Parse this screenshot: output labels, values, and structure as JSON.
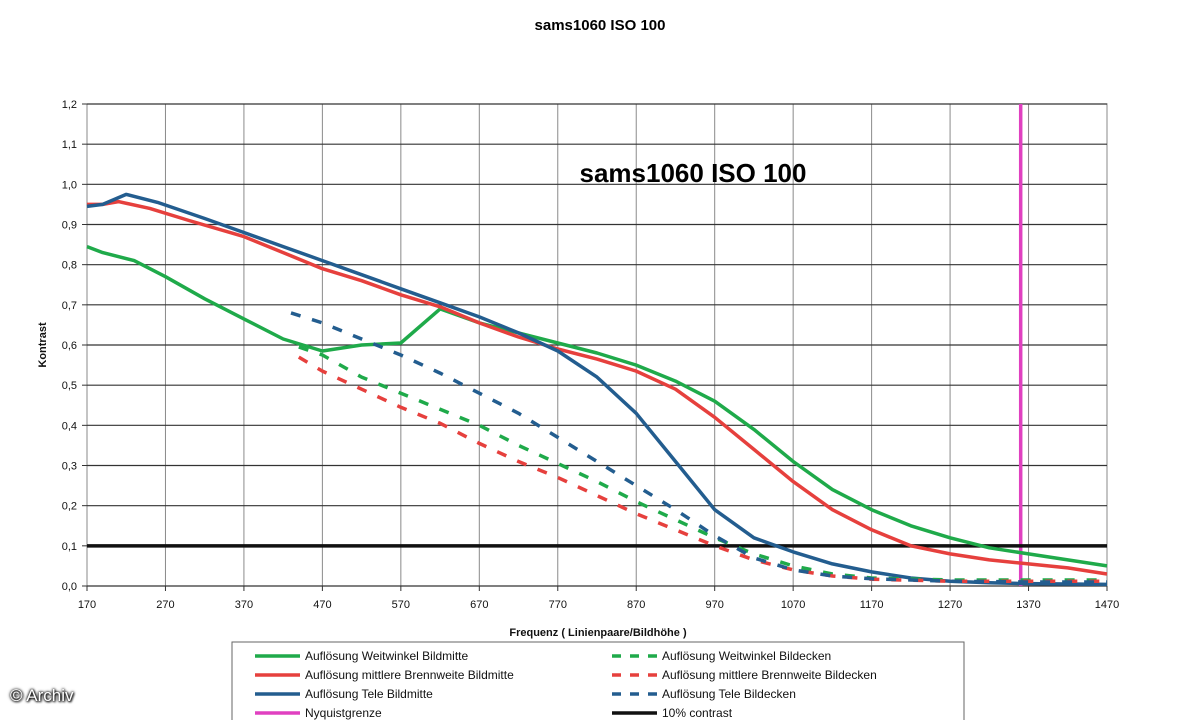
{
  "chart_data": {
    "type": "line",
    "title": "sams1060 ISO 100",
    "inner_title": "sams1060 ISO 100",
    "xlabel": "Frequenz ( Linienpaare/Bildhöhe )",
    "ylabel": "Kontrast",
    "xlim": [
      170,
      1470
    ],
    "ylim": [
      0,
      1.2
    ],
    "x_ticks": [
      "170",
      "270",
      "370",
      "470",
      "570",
      "670",
      "770",
      "870",
      "970",
      "1070",
      "1170",
      "1270",
      "1370",
      "1470"
    ],
    "y_ticks": [
      "0,0",
      "0,1",
      "0,2",
      "0,3",
      "0,4",
      "0,5",
      "0,6",
      "0,7",
      "0,8",
      "0,9",
      "1,0",
      "1,1",
      "1,2"
    ],
    "grid": "horizontal and vertical",
    "legend_position": "bottom",
    "series": [
      {
        "name": "Auflösung Weitwinkel Bildmitte",
        "color": "#1faa4a",
        "style": "solid",
        "points": [
          [
            170,
            0.845
          ],
          [
            190,
            0.83
          ],
          [
            230,
            0.81
          ],
          [
            270,
            0.77
          ],
          [
            320,
            0.715
          ],
          [
            370,
            0.665
          ],
          [
            420,
            0.615
          ],
          [
            470,
            0.585
          ],
          [
            520,
            0.6
          ],
          [
            570,
            0.605
          ],
          [
            620,
            0.69
          ],
          [
            670,
            0.655
          ],
          [
            720,
            0.63
          ],
          [
            770,
            0.605
          ],
          [
            820,
            0.58
          ],
          [
            870,
            0.55
          ],
          [
            920,
            0.51
          ],
          [
            970,
            0.46
          ],
          [
            1020,
            0.39
          ],
          [
            1070,
            0.31
          ],
          [
            1120,
            0.24
          ],
          [
            1170,
            0.19
          ],
          [
            1220,
            0.15
          ],
          [
            1270,
            0.12
          ],
          [
            1320,
            0.095
          ],
          [
            1370,
            0.08
          ],
          [
            1420,
            0.065
          ],
          [
            1470,
            0.05
          ]
        ]
      },
      {
        "name": "Auflösung mittlere Brennweite Bildmitte",
        "color": "#e6403d",
        "style": "solid",
        "points": [
          [
            170,
            0.95
          ],
          [
            190,
            0.95
          ],
          [
            210,
            0.957
          ],
          [
            250,
            0.94
          ],
          [
            300,
            0.91
          ],
          [
            370,
            0.87
          ],
          [
            420,
            0.83
          ],
          [
            470,
            0.79
          ],
          [
            520,
            0.76
          ],
          [
            570,
            0.725
          ],
          [
            620,
            0.695
          ],
          [
            670,
            0.655
          ],
          [
            720,
            0.62
          ],
          [
            770,
            0.59
          ],
          [
            820,
            0.565
          ],
          [
            870,
            0.535
          ],
          [
            920,
            0.49
          ],
          [
            970,
            0.42
          ],
          [
            1020,
            0.34
          ],
          [
            1070,
            0.26
          ],
          [
            1120,
            0.19
          ],
          [
            1170,
            0.14
          ],
          [
            1220,
            0.1
          ],
          [
            1270,
            0.08
          ],
          [
            1320,
            0.065
          ],
          [
            1370,
            0.055
          ],
          [
            1420,
            0.045
          ],
          [
            1470,
            0.03
          ]
        ]
      },
      {
        "name": "Auflösung Tele Bildmitte",
        "color": "#235d8f",
        "style": "solid",
        "points": [
          [
            170,
            0.945
          ],
          [
            190,
            0.95
          ],
          [
            220,
            0.975
          ],
          [
            260,
            0.955
          ],
          [
            320,
            0.915
          ],
          [
            370,
            0.88
          ],
          [
            420,
            0.845
          ],
          [
            470,
            0.81
          ],
          [
            520,
            0.775
          ],
          [
            570,
            0.74
          ],
          [
            620,
            0.705
          ],
          [
            670,
            0.67
          ],
          [
            720,
            0.63
          ],
          [
            770,
            0.585
          ],
          [
            820,
            0.52
          ],
          [
            870,
            0.43
          ],
          [
            920,
            0.31
          ],
          [
            970,
            0.19
          ],
          [
            1020,
            0.12
          ],
          [
            1070,
            0.085
          ],
          [
            1120,
            0.055
          ],
          [
            1170,
            0.035
          ],
          [
            1220,
            0.02
          ],
          [
            1270,
            0.012
          ],
          [
            1320,
            0.008
          ],
          [
            1370,
            0.006
          ],
          [
            1420,
            0.005
          ],
          [
            1470,
            0.004
          ]
        ]
      },
      {
        "name": "Auflösung Weitwinkel Bildecken",
        "color": "#1faa4a",
        "style": "dashed",
        "points": [
          [
            440,
            0.595
          ],
          [
            470,
            0.575
          ],
          [
            520,
            0.52
          ],
          [
            570,
            0.48
          ],
          [
            620,
            0.44
          ],
          [
            670,
            0.4
          ],
          [
            720,
            0.35
          ],
          [
            770,
            0.305
          ],
          [
            820,
            0.26
          ],
          [
            870,
            0.21
          ],
          [
            920,
            0.165
          ],
          [
            970,
            0.12
          ],
          [
            1020,
            0.08
          ],
          [
            1070,
            0.05
          ],
          [
            1120,
            0.03
          ],
          [
            1170,
            0.02
          ],
          [
            1270,
            0.015
          ],
          [
            1370,
            0.015
          ],
          [
            1470,
            0.015
          ]
        ]
      },
      {
        "name": "Auflösung mittlere Brennweite Bildecken",
        "color": "#e6403d",
        "style": "dashed",
        "points": [
          [
            440,
            0.57
          ],
          [
            470,
            0.535
          ],
          [
            520,
            0.49
          ],
          [
            570,
            0.445
          ],
          [
            620,
            0.405
          ],
          [
            670,
            0.355
          ],
          [
            720,
            0.31
          ],
          [
            770,
            0.27
          ],
          [
            820,
            0.225
          ],
          [
            870,
            0.18
          ],
          [
            920,
            0.14
          ],
          [
            970,
            0.1
          ],
          [
            1020,
            0.065
          ],
          [
            1070,
            0.04
          ],
          [
            1120,
            0.025
          ],
          [
            1170,
            0.017
          ],
          [
            1270,
            0.012
          ],
          [
            1370,
            0.012
          ],
          [
            1470,
            0.012
          ]
        ]
      },
      {
        "name": "Auflösung Tele Bildecken",
        "color": "#235d8f",
        "style": "dashed",
        "points": [
          [
            430,
            0.68
          ],
          [
            470,
            0.655
          ],
          [
            520,
            0.615
          ],
          [
            570,
            0.575
          ],
          [
            620,
            0.53
          ],
          [
            670,
            0.48
          ],
          [
            720,
            0.43
          ],
          [
            770,
            0.37
          ],
          [
            820,
            0.31
          ],
          [
            870,
            0.25
          ],
          [
            920,
            0.19
          ],
          [
            970,
            0.125
          ],
          [
            1020,
            0.07
          ],
          [
            1070,
            0.04
          ],
          [
            1120,
            0.025
          ],
          [
            1170,
            0.018
          ],
          [
            1270,
            0.012
          ],
          [
            1370,
            0.01
          ],
          [
            1470,
            0.01
          ]
        ]
      }
    ],
    "reference_lines": [
      {
        "name": "Nyquistgrenze",
        "color": "#e040c0",
        "orientation": "vertical",
        "x": 1360
      },
      {
        "name": "10% contrast",
        "color": "#111111",
        "orientation": "horizontal",
        "y": 0.1
      }
    ]
  },
  "watermark": "© Archiv"
}
